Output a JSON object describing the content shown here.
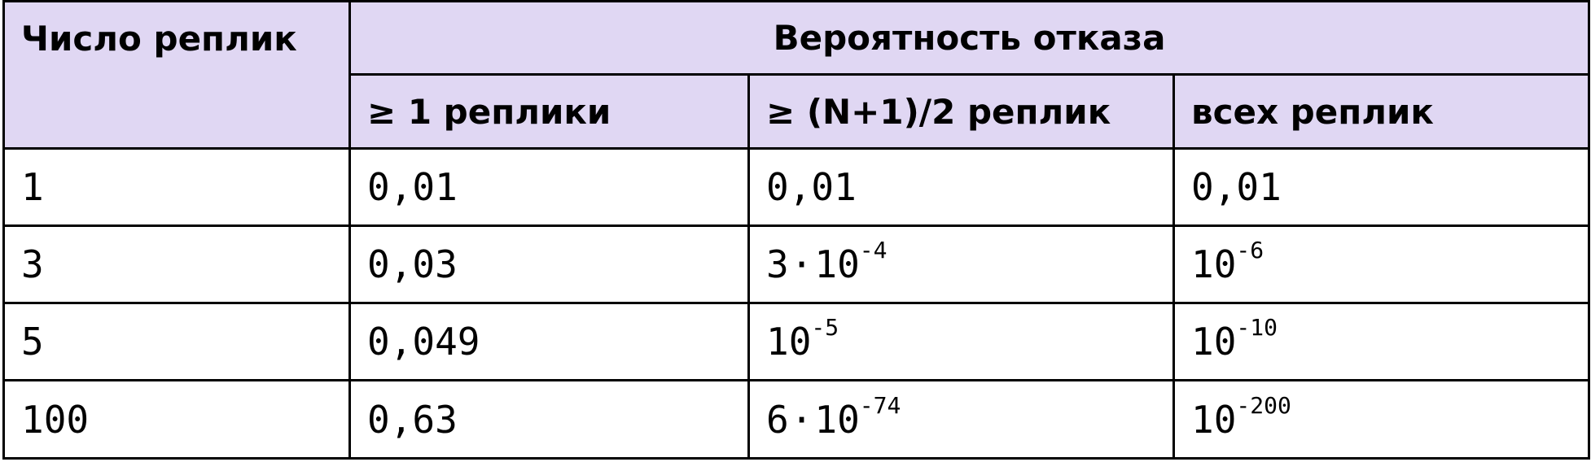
{
  "header": {
    "replicas_label": "Число реплик",
    "failure_prob_label": "Вероятность отказа",
    "sub_columns": [
      "≥ 1 реплики",
      "≥ (N+1)/2 реплик",
      "всех реплик"
    ]
  },
  "rows": [
    {
      "n": "1",
      "at_least_one": {
        "mantissa": "0,01",
        "base": "",
        "exp": ""
      },
      "majority": {
        "mantissa": "0,01",
        "base": "",
        "exp": ""
      },
      "all": {
        "mantissa": "0,01",
        "base": "",
        "exp": ""
      }
    },
    {
      "n": "3",
      "at_least_one": {
        "mantissa": "0,03",
        "base": "",
        "exp": ""
      },
      "majority": {
        "mantissa": "3",
        "base": "10",
        "exp": "-4"
      },
      "all": {
        "mantissa": "",
        "base": "10",
        "exp": "-6"
      }
    },
    {
      "n": "5",
      "at_least_one": {
        "mantissa": "0,049",
        "base": "",
        "exp": ""
      },
      "majority": {
        "mantissa": "",
        "base": "10",
        "exp": "-5"
      },
      "all": {
        "mantissa": "",
        "base": "10",
        "exp": "-10"
      }
    },
    {
      "n": "100",
      "at_least_one": {
        "mantissa": "0,63",
        "base": "",
        "exp": ""
      },
      "majority": {
        "mantissa": "6",
        "base": "10",
        "exp": "-74"
      },
      "all": {
        "mantissa": "",
        "base": "10",
        "exp": "-200"
      }
    }
  ],
  "colors": {
    "header_bg": "#e0d7f3",
    "border": "#000000",
    "text": "#000000"
  }
}
